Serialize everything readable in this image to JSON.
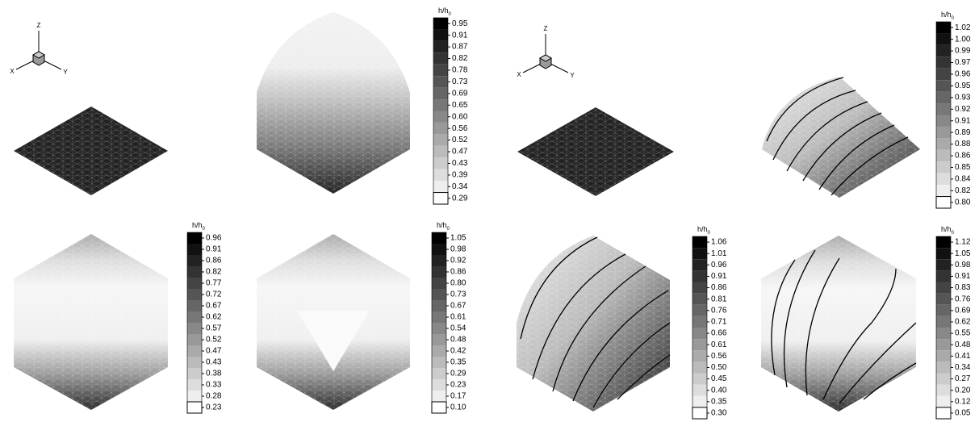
{
  "triads": [
    {
      "z": "Z",
      "x": "X",
      "y": "Y"
    },
    {
      "z": "Z",
      "x": "X",
      "y": "Y"
    }
  ],
  "colorbars": [
    {
      "title": "h/h",
      "subscript": "0",
      "levels": [
        "0.95",
        "0.91",
        "0.87",
        "0.82",
        "0.78",
        "0.73",
        "0.69",
        "0.65",
        "0.60",
        "0.56",
        "0.52",
        "0.47",
        "0.43",
        "0.39",
        "0.34",
        "0.29"
      ]
    },
    {
      "title": "h/h",
      "subscript": "0",
      "levels": [
        "0.96",
        "0.91",
        "0.86",
        "0.82",
        "0.77",
        "0.72",
        "0.67",
        "0.62",
        "0.57",
        "0.52",
        "0.47",
        "0.43",
        "0.38",
        "0.33",
        "0.28",
        "0.23"
      ]
    },
    {
      "title": "h/h",
      "subscript": "0",
      "levels": [
        "1.05",
        "0.98",
        "0.92",
        "0.86",
        "0.80",
        "0.73",
        "0.67",
        "0.61",
        "0.54",
        "0.48",
        "0.42",
        "0.35",
        "0.29",
        "0.23",
        "0.17",
        "0.10"
      ]
    },
    {
      "title": "h/h",
      "subscript": "0",
      "levels": [
        "1.02",
        "1.00",
        "0.99",
        "0.97",
        "0.96",
        "0.95",
        "0.93",
        "0.92",
        "0.91",
        "0.89",
        "0.88",
        "0.86",
        "0.85",
        "0.84",
        "0.82",
        "0.80"
      ]
    },
    {
      "title": "h/h",
      "subscript": "0",
      "levels": [
        "1.06",
        "1.01",
        "0.96",
        "0.91",
        "0.86",
        "0.81",
        "0.76",
        "0.71",
        "0.66",
        "0.61",
        "0.56",
        "0.50",
        "0.45",
        "0.40",
        "0.35",
        "0.30"
      ]
    },
    {
      "title": "h/h",
      "subscript": "0",
      "levels": [
        "1.12",
        "1.05",
        "0.98",
        "0.91",
        "0.83",
        "0.76",
        "0.69",
        "0.62",
        "0.55",
        "0.48",
        "0.41",
        "0.34",
        "0.27",
        "0.20",
        "0.12",
        "0.05"
      ]
    }
  ]
}
